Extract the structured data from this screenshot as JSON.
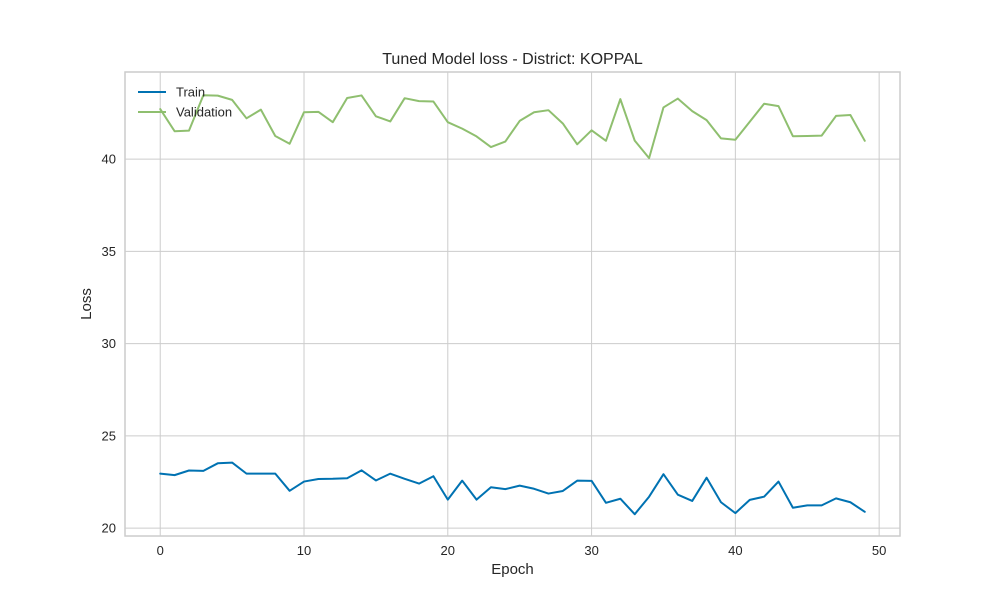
{
  "chart_data": {
    "type": "line",
    "title": "Tuned Model loss - District: KOPPAL",
    "xlabel": "Epoch",
    "ylabel": "Loss",
    "xlim": [
      -2.45,
      51.45
    ],
    "ylim": [
      19.57,
      44.72
    ],
    "xticks": [
      0,
      10,
      20,
      30,
      40,
      50
    ],
    "yticks": [
      20,
      25,
      30,
      35,
      40
    ],
    "grid": true,
    "legend_position": "upper-left",
    "series": [
      {
        "name": "Train",
        "color": "#0072b2",
        "x": [
          0,
          1,
          2,
          3,
          4,
          5,
          6,
          7,
          8,
          9,
          10,
          11,
          12,
          13,
          14,
          15,
          16,
          17,
          18,
          19,
          20,
          21,
          22,
          23,
          24,
          25,
          26,
          27,
          28,
          29,
          30,
          31,
          32,
          33,
          34,
          35,
          36,
          37,
          38,
          39,
          40,
          41,
          42,
          43,
          44,
          45,
          46,
          47,
          48,
          49
        ],
        "values": [
          22.95,
          22.87,
          23.12,
          23.1,
          23.51,
          23.55,
          22.95,
          22.95,
          22.95,
          22.02,
          22.52,
          22.66,
          22.67,
          22.7,
          23.13,
          22.58,
          22.95,
          22.67,
          22.41,
          22.81,
          21.54,
          22.57,
          21.54,
          22.21,
          22.11,
          22.3,
          22.13,
          21.87,
          22.01,
          22.57,
          22.56,
          21.37,
          21.59,
          20.75,
          21.7,
          22.92,
          21.81,
          21.47,
          22.73,
          21.4,
          20.81,
          21.53,
          21.7,
          22.52,
          21.1,
          21.23,
          21.23,
          21.61,
          21.4,
          20.88
        ]
      },
      {
        "name": "Validation",
        "color": "#8fbf6f",
        "x": [
          0,
          1,
          2,
          3,
          4,
          5,
          6,
          7,
          8,
          9,
          10,
          11,
          12,
          13,
          14,
          15,
          16,
          17,
          18,
          19,
          20,
          21,
          22,
          23,
          24,
          25,
          26,
          27,
          28,
          29,
          30,
          31,
          32,
          33,
          34,
          35,
          36,
          37,
          38,
          39,
          40,
          41,
          42,
          43,
          44,
          45,
          46,
          47,
          48,
          49
        ],
        "values": [
          42.71,
          41.51,
          41.54,
          43.46,
          43.44,
          43.21,
          42.21,
          42.68,
          41.25,
          40.83,
          42.54,
          42.56,
          42.0,
          43.31,
          43.45,
          42.32,
          42.04,
          43.3,
          43.14,
          43.12,
          42.0,
          41.65,
          41.23,
          40.65,
          40.95,
          42.07,
          42.54,
          42.65,
          41.93,
          40.8,
          41.56,
          40.99,
          43.25,
          41.0,
          40.05,
          42.8,
          43.28,
          42.6,
          42.11,
          41.12,
          41.05,
          42.02,
          43.0,
          42.87,
          41.24,
          41.25,
          41.27,
          42.34,
          42.39,
          40.99
        ]
      }
    ]
  }
}
